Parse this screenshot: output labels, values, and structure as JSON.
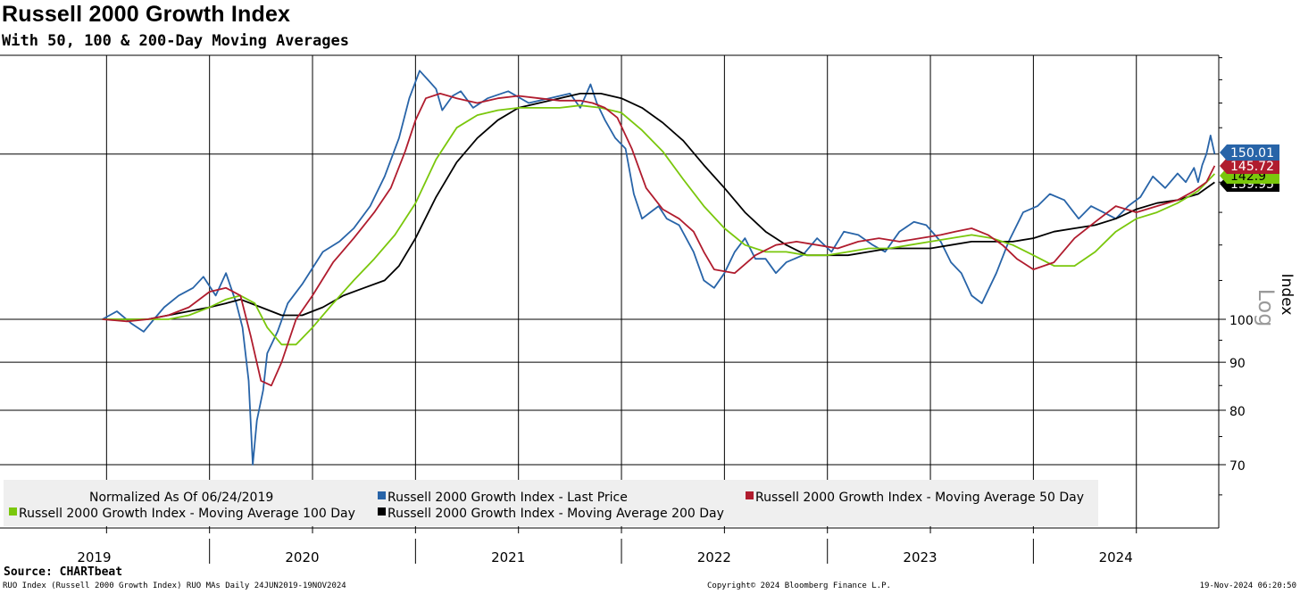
{
  "header": {
    "title": "Russell 2000 Growth Index",
    "subtitle": "With 50, 100 & 200-Day Moving Averages"
  },
  "source": "Source: CHARTbeat",
  "footer": {
    "left": "RUO Index (Russell 2000 Growth Index) RUO MAs  Daily 24JUN2019-19NOV2024",
    "center": "Copyright© 2024 Bloomberg Finance L.P.",
    "right": "19-Nov-2024 06:20:50"
  },
  "chart_data": {
    "type": "line",
    "title": "Russell 2000 Growth Index",
    "subtitle": "With 50, 100 & 200-Day Moving Averages",
    "ylabel": "Index",
    "yscale": "log",
    "yscale_label": "Log",
    "ylim": [
      62,
      195
    ],
    "yticks": [
      70,
      80,
      90,
      100
    ],
    "gridlines": [
      70,
      80,
      90,
      100,
      150
    ],
    "xlim": [
      2019.0,
      2024.9
    ],
    "years": [
      "2019",
      "2020",
      "2021",
      "2022",
      "2023",
      "2024"
    ],
    "legend": {
      "note": "Normalized As Of 06/24/2019",
      "placement": "bottom-left"
    },
    "colors": {
      "last_price": "#2864a8",
      "ma50": "#b01c2e",
      "ma100": "#7ac70c",
      "ma200": "#000000"
    },
    "series": [
      {
        "key": "last_price",
        "name": "Russell 2000 Growth Index - Last Price",
        "last_value": "150.01",
        "x": [
          2019.48,
          2019.55,
          2019.62,
          2019.68,
          2019.73,
          2019.78,
          2019.85,
          2019.92,
          2019.97,
          2020.03,
          2020.08,
          2020.13,
          2020.16,
          2020.19,
          2020.21,
          2020.23,
          2020.26,
          2020.28,
          2020.33,
          2020.38,
          2020.45,
          2020.55,
          2020.63,
          2020.7,
          2020.78,
          2020.85,
          2020.92,
          2020.97,
          2021.02,
          2021.06,
          2021.1,
          2021.13,
          2021.18,
          2021.22,
          2021.28,
          2021.35,
          2021.45,
          2021.55,
          2021.65,
          2021.75,
          2021.8,
          2021.85,
          2021.88,
          2021.92,
          2021.97,
          2022.02,
          2022.06,
          2022.1,
          2022.14,
          2022.18,
          2022.22,
          2022.28,
          2022.35,
          2022.4,
          2022.45,
          2022.5,
          2022.55,
          2022.6,
          2022.65,
          2022.7,
          2022.75,
          2022.8,
          2022.88,
          2022.95,
          2023.02,
          2023.08,
          2023.15,
          2023.22,
          2023.28,
          2023.35,
          2023.42,
          2023.48,
          2023.55,
          2023.6,
          2023.65,
          2023.7,
          2023.75,
          2023.82,
          2023.88,
          2023.95,
          2024.02,
          2024.08,
          2024.15,
          2024.22,
          2024.28,
          2024.34,
          2024.4,
          2024.46,
          2024.52,
          2024.58,
          2024.64,
          2024.7,
          2024.74,
          2024.78,
          2024.8,
          2024.82,
          2024.84,
          2024.86,
          2024.88
        ],
        "values": [
          100,
          102,
          99,
          97,
          100,
          103,
          106,
          108,
          111,
          106,
          112,
          104,
          98,
          86,
          70,
          78,
          84,
          92,
          97,
          104,
          109,
          118,
          121,
          125,
          132,
          142,
          156,
          172,
          184,
          180,
          176,
          167,
          173,
          175,
          168,
          172,
          175,
          170,
          172,
          174,
          168,
          178,
          170,
          163,
          156,
          152,
          136,
          128,
          130,
          132,
          128,
          126,
          118,
          110,
          108,
          112,
          118,
          122,
          116,
          116,
          112,
          115,
          117,
          122,
          118,
          124,
          123,
          120,
          118,
          124,
          127,
          126,
          121,
          115,
          112,
          106,
          104,
          112,
          121,
          130,
          132,
          136,
          134,
          128,
          132,
          130,
          128,
          132,
          135,
          142,
          138,
          143,
          140,
          145,
          140,
          146,
          150,
          157,
          150.01
        ]
      },
      {
        "key": "ma50",
        "name": "Russell 2000 Growth Index - Moving Average 50 Day",
        "last_value": "145.72",
        "x": [
          2019.48,
          2019.6,
          2019.7,
          2019.8,
          2019.9,
          2020.0,
          2020.08,
          2020.15,
          2020.2,
          2020.25,
          2020.3,
          2020.35,
          2020.42,
          2020.5,
          2020.6,
          2020.7,
          2020.8,
          2020.88,
          2020.95,
          2021.0,
          2021.05,
          2021.12,
          2021.2,
          2021.3,
          2021.4,
          2021.5,
          2021.6,
          2021.7,
          2021.8,
          2021.86,
          2021.92,
          2021.98,
          2022.05,
          2022.12,
          2022.2,
          2022.28,
          2022.35,
          2022.4,
          2022.45,
          2022.55,
          2022.65,
          2022.75,
          2022.85,
          2022.95,
          2023.05,
          2023.15,
          2023.25,
          2023.35,
          2023.45,
          2023.55,
          2023.62,
          2023.7,
          2023.78,
          2023.85,
          2023.92,
          2024.0,
          2024.1,
          2024.2,
          2024.3,
          2024.4,
          2024.5,
          2024.6,
          2024.7,
          2024.78,
          2024.84,
          2024.88
        ],
        "values": [
          100,
          99.5,
          100,
          101,
          103,
          107,
          108,
          106,
          96,
          86,
          85,
          90,
          100,
          106,
          115,
          122,
          130,
          138,
          151,
          163,
          172,
          174,
          172,
          170,
          172,
          173,
          172,
          171,
          171,
          170,
          168,
          164,
          152,
          138,
          131,
          128,
          124,
          118,
          113,
          112,
          117,
          120,
          121,
          120,
          119,
          121,
          122,
          121,
          122,
          123,
          124,
          125,
          123,
          120,
          116,
          113,
          115,
          122,
          127,
          132,
          130,
          132,
          134,
          137,
          140,
          145.72
        ]
      },
      {
        "key": "ma100",
        "name": "Russell 2000 Growth Index - Moving Average 100 Day",
        "last_value": "142.9",
        "x": [
          2019.48,
          2019.6,
          2019.7,
          2019.8,
          2019.9,
          2020.0,
          2020.08,
          2020.15,
          2020.22,
          2020.28,
          2020.35,
          2020.42,
          2020.5,
          2020.6,
          2020.7,
          2020.8,
          2020.9,
          2021.0,
          2021.1,
          2021.2,
          2021.3,
          2021.4,
          2021.5,
          2021.6,
          2021.7,
          2021.8,
          2021.9,
          2022.0,
          2022.1,
          2022.2,
          2022.3,
          2022.4,
          2022.5,
          2022.6,
          2022.7,
          2022.8,
          2022.9,
          2023.0,
          2023.1,
          2023.2,
          2023.3,
          2023.4,
          2023.5,
          2023.6,
          2023.7,
          2023.8,
          2023.9,
          2024.0,
          2024.1,
          2024.2,
          2024.3,
          2024.4,
          2024.5,
          2024.6,
          2024.7,
          2024.8,
          2024.88
        ],
        "values": [
          100,
          100,
          100,
          100,
          101,
          103,
          105,
          106,
          104,
          98,
          94,
          94,
          98,
          104,
          110,
          116,
          123,
          133,
          148,
          160,
          165,
          167,
          168,
          168,
          168,
          169,
          168,
          166,
          159,
          151,
          141,
          132,
          125,
          120,
          118,
          118,
          117,
          117,
          118,
          119,
          119,
          120,
          121,
          122,
          123,
          122,
          120,
          117,
          114,
          114,
          118,
          124,
          128,
          130,
          133,
          137,
          142.9
        ]
      },
      {
        "key": "ma200",
        "name": "Russell 2000 Growth Index - Moving Average 200 Day",
        "last_value": "139.95",
        "x": [
          2019.48,
          2019.6,
          2019.7,
          2019.8,
          2019.9,
          2020.0,
          2020.08,
          2020.15,
          2020.25,
          2020.35,
          2020.45,
          2020.55,
          2020.65,
          2020.75,
          2020.85,
          2020.92,
          2021.0,
          2021.1,
          2021.2,
          2021.3,
          2021.4,
          2021.5,
          2021.6,
          2021.7,
          2021.8,
          2021.9,
          2022.0,
          2022.1,
          2022.2,
          2022.3,
          2022.4,
          2022.5,
          2022.6,
          2022.7,
          2022.8,
          2022.9,
          2023.0,
          2023.1,
          2023.2,
          2023.3,
          2023.4,
          2023.5,
          2023.6,
          2023.7,
          2023.8,
          2023.9,
          2024.0,
          2024.1,
          2024.2,
          2024.3,
          2024.4,
          2024.5,
          2024.6,
          2024.7,
          2024.8,
          2024.88
        ],
        "values": [
          100,
          100,
          100,
          101,
          102,
          103,
          104,
          105,
          103,
          101,
          101,
          103,
          106,
          108,
          110,
          114,
          122,
          135,
          147,
          156,
          163,
          168,
          170,
          172,
          174,
          174,
          172,
          168,
          162,
          155,
          146,
          138,
          130,
          124,
          120,
          117,
          117,
          117,
          118,
          119,
          119,
          119,
          120,
          121,
          121,
          121,
          122,
          124,
          125,
          126,
          128,
          131,
          133,
          134,
          136,
          139.95
        ]
      }
    ]
  }
}
